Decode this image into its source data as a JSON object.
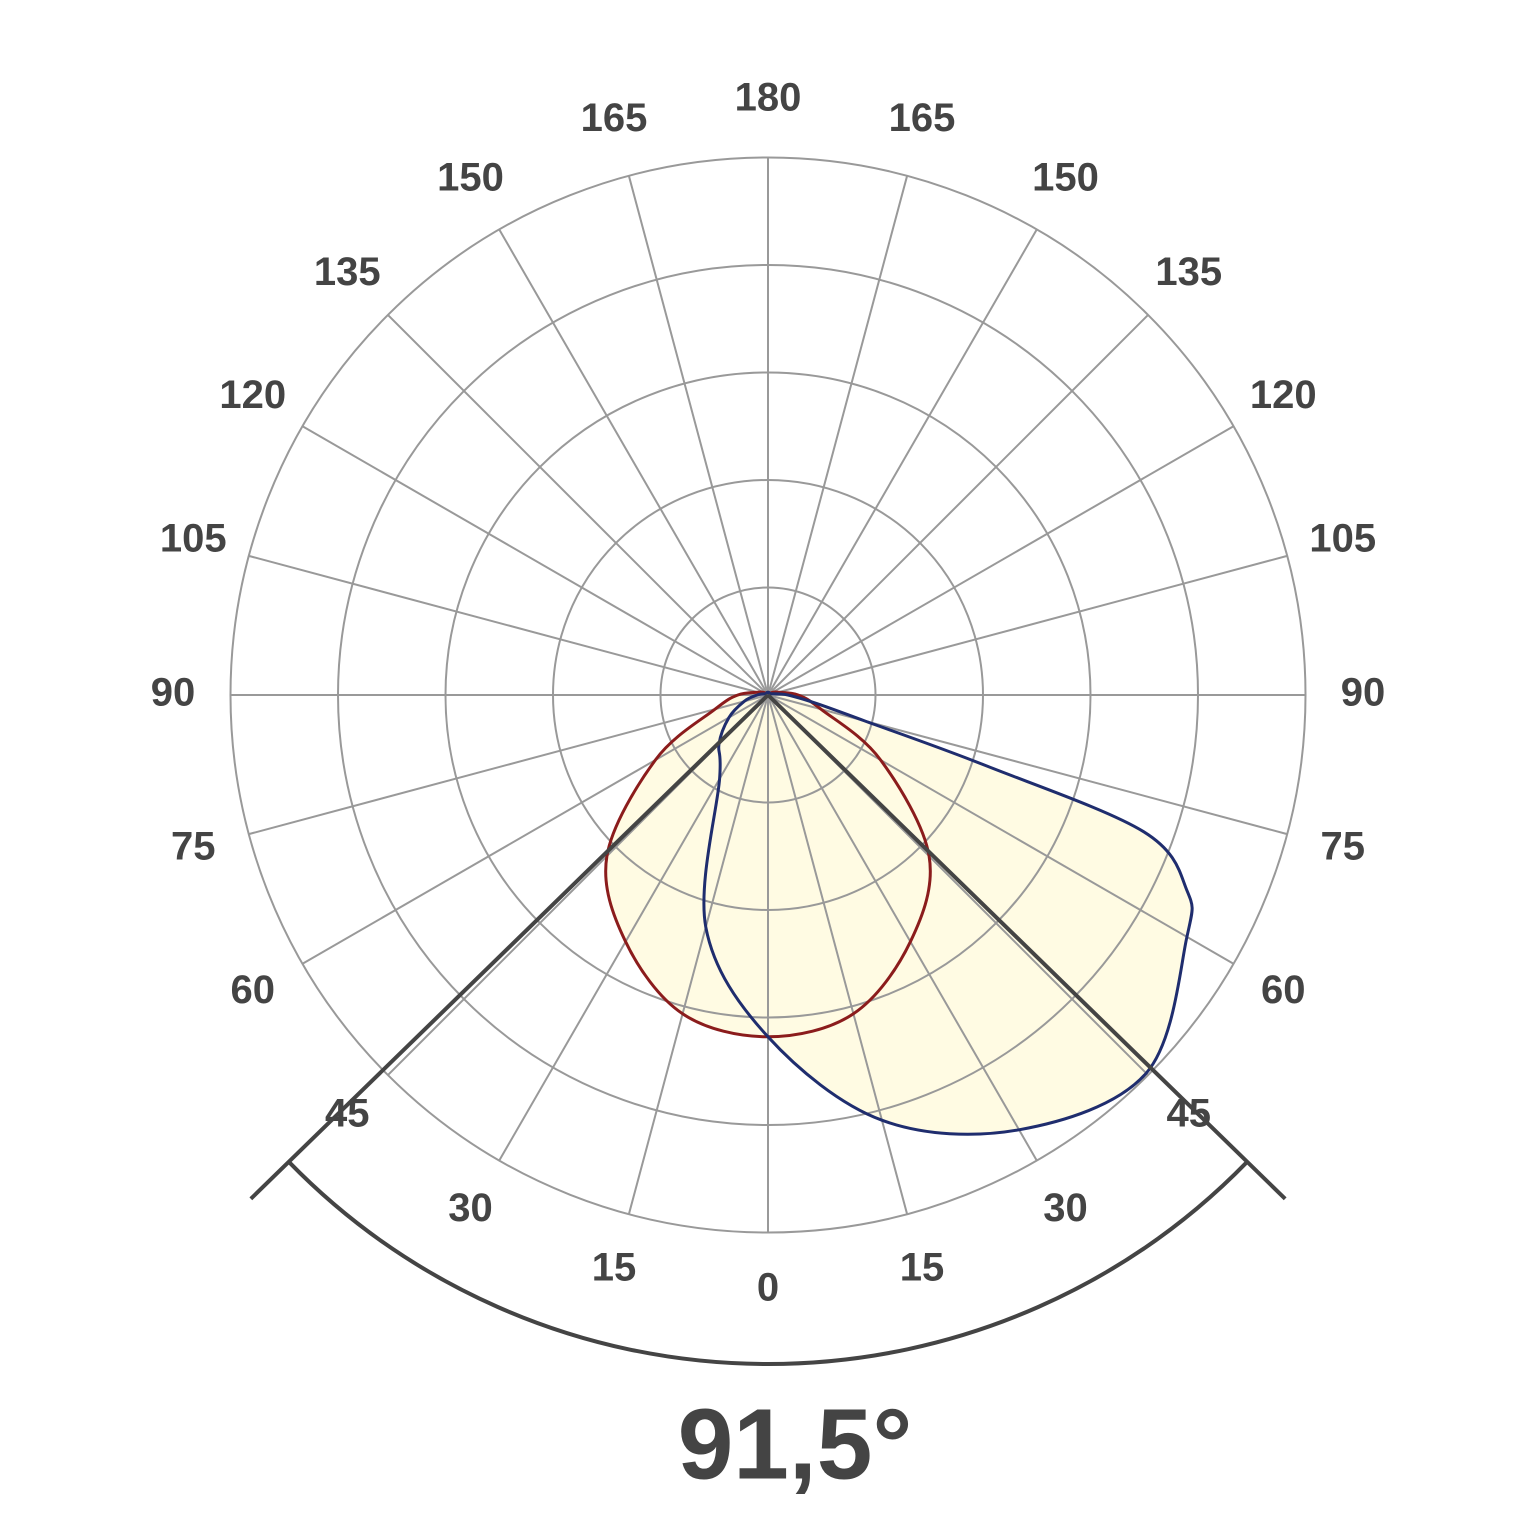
{
  "chart_data": {
    "type": "polar",
    "thetaticks": [
      0,
      15,
      30,
      45,
      60,
      75,
      90,
      105,
      120,
      135,
      150,
      165,
      180,
      {
        "value": -165,
        "label": "165"
      },
      {
        "value": -150,
        "label": "150"
      },
      {
        "value": -135,
        "label": "135"
      },
      {
        "value": -120,
        "label": "120"
      },
      {
        "value": -105,
        "label": "105"
      },
      {
        "value": -90,
        "label": "90"
      },
      {
        "value": -75,
        "label": "75"
      },
      {
        "value": -60,
        "label": "60"
      },
      {
        "value": -45,
        "label": "45"
      },
      {
        "value": -30,
        "label": "30"
      },
      {
        "value": -15,
        "label": "15"
      }
    ],
    "rlim": [
      0,
      100
    ],
    "rticks": [
      20,
      40,
      60,
      80,
      100
    ],
    "grid": true,
    "fill": "#fffbe3",
    "beam_angle": {
      "value": 91.5,
      "label": "91,5°"
    },
    "series": [
      {
        "color": "#8b1c1c",
        "theta": [
          -180,
          -165,
          -150,
          -135,
          -120,
          -105,
          -90,
          -75,
          -60,
          -45,
          -30,
          -15,
          0,
          15,
          30,
          45,
          60,
          75,
          90,
          105,
          120,
          135,
          150,
          165,
          180
        ],
        "values": [
          0.5,
          0.5,
          0.5,
          0.5,
          1,
          2,
          5.6,
          10.2,
          24.2,
          42.4,
          53,
          61.4,
          63.6,
          61.4,
          53,
          42.4,
          24.2,
          10.2,
          5.6,
          2,
          1,
          0.5,
          0.5,
          0.5,
          0.5
        ]
      },
      {
        "color": "#1f2d6e",
        "theta": [
          -180,
          -150,
          -120,
          -90,
          -75,
          -60,
          -45,
          -30,
          -15,
          0,
          15,
          30,
          45,
          60,
          65,
          70,
          72,
          75,
          80,
          90,
          120,
          150,
          180
        ],
        "values": [
          0.5,
          0.5,
          0.5,
          2,
          4.6,
          8.4,
          12.9,
          18,
          44.7,
          63.6,
          81.9,
          93.4,
          99.5,
          90,
          86,
          74.4,
          43,
          18.6,
          9.3,
          3.7,
          0.5,
          0.5,
          0.5
        ]
      }
    ]
  }
}
